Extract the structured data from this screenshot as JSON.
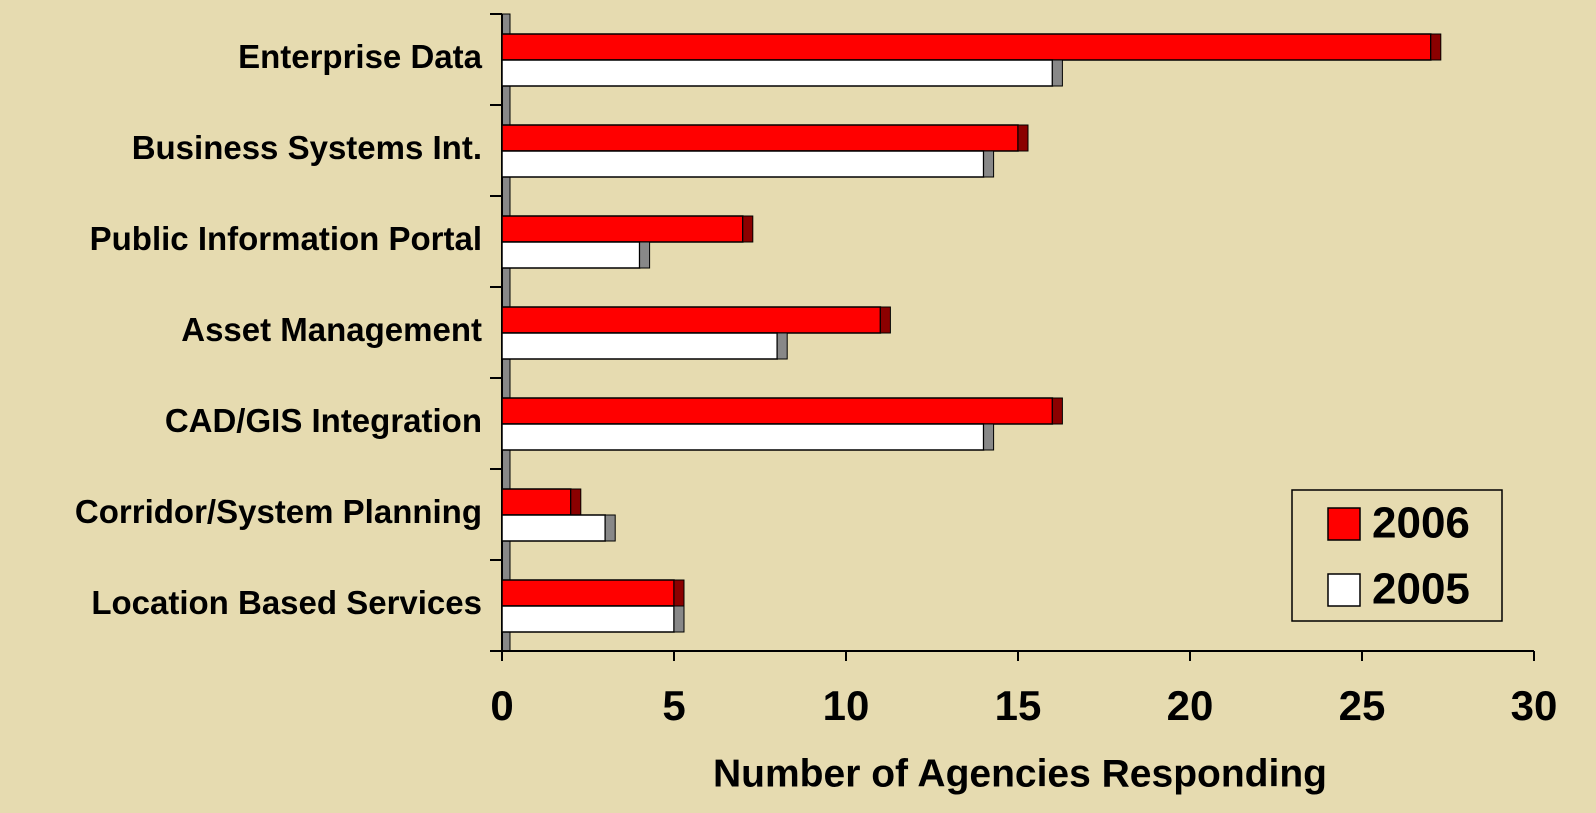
{
  "chart_data": {
    "type": "bar",
    "orientation": "horizontal",
    "x_label": "Number of Agencies Responding",
    "categories": [
      "Enterprise Data",
      "Business Systems Int.",
      "Public Information Portal",
      "Asset Management",
      "CAD/GIS Integration",
      "Corridor/System Planning",
      "Location Based Services"
    ],
    "series": [
      {
        "name": "2006",
        "color": "#ff0000",
        "values": [
          27,
          15,
          7,
          11,
          16,
          2,
          5
        ]
      },
      {
        "name": "2005",
        "color": "#ffffff",
        "values": [
          16,
          14,
          4,
          8,
          14,
          3,
          5
        ]
      }
    ],
    "xlim": [
      0,
      30
    ],
    "xticks": [
      0,
      5,
      10,
      15,
      20,
      25,
      30
    ],
    "legend": "lower right"
  }
}
